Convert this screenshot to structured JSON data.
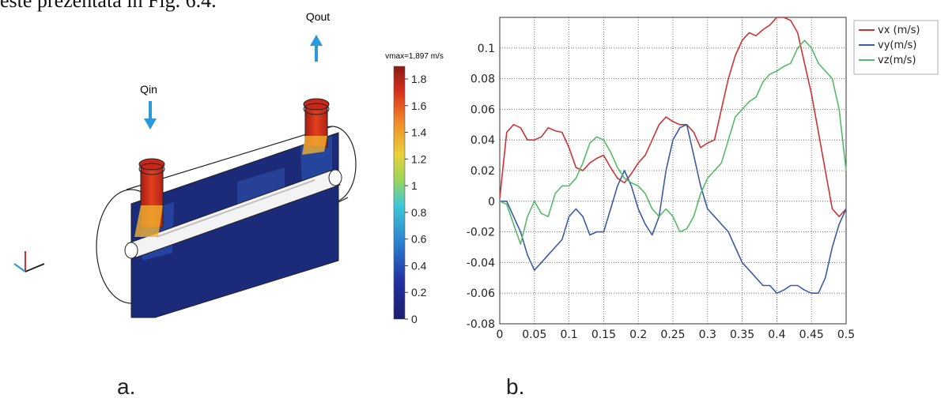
{
  "top_text": "este prezentată în Fig. 6.4.",
  "panel_a": {
    "label": "a.",
    "qin_label": "Qin",
    "qout_label": "Qout",
    "vmax_label": "vmax=1,897 m/s",
    "colorbar_ticks": [
      "1.8",
      "1.6",
      "1.4",
      "1.2",
      "1",
      "0.8",
      "0.6",
      "0.4",
      "0.2",
      "0"
    ],
    "colors": {
      "arrow": "#2a9ad8",
      "body": "#1c2a7a",
      "hot": "#d8301c"
    }
  },
  "panel_b": {
    "label": "b."
  },
  "chart_data": {
    "type": "line",
    "xlim": [
      0,
      0.5
    ],
    "ylim": [
      -0.08,
      0.12
    ],
    "x_ticks": [
      "0",
      "0.05",
      "0.1",
      "0.15",
      "0.2",
      "0.25",
      "0.3",
      "0.35",
      "0.4",
      "0.45",
      "0.5"
    ],
    "y_ticks": [
      "0.1",
      "0.08",
      "0.06",
      "0.04",
      "0.02",
      "0",
      "-0.02",
      "-0.04",
      "-0.06",
      "-0.08"
    ],
    "grid": true,
    "legend": "top-right outside",
    "series": [
      {
        "name": "vx (m/s)",
        "color": "#cc3333",
        "x": [
          0,
          0.01,
          0.02,
          0.03,
          0.04,
          0.05,
          0.06,
          0.07,
          0.08,
          0.09,
          0.1,
          0.11,
          0.12,
          0.13,
          0.14,
          0.15,
          0.16,
          0.17,
          0.18,
          0.19,
          0.2,
          0.21,
          0.22,
          0.23,
          0.24,
          0.25,
          0.26,
          0.27,
          0.28,
          0.29,
          0.3,
          0.31,
          0.32,
          0.33,
          0.34,
          0.35,
          0.36,
          0.37,
          0.38,
          0.39,
          0.4,
          0.41,
          0.42,
          0.43,
          0.44,
          0.45,
          0.46,
          0.47,
          0.48,
          0.49,
          0.5
        ],
        "y": [
          0.002,
          0.045,
          0.05,
          0.048,
          0.04,
          0.04,
          0.042,
          0.048,
          0.046,
          0.045,
          0.035,
          0.022,
          0.02,
          0.025,
          0.028,
          0.03,
          0.022,
          0.015,
          0.012,
          0.018,
          0.025,
          0.03,
          0.04,
          0.05,
          0.055,
          0.052,
          0.05,
          0.05,
          0.045,
          0.035,
          0.038,
          0.04,
          0.06,
          0.08,
          0.095,
          0.105,
          0.11,
          0.108,
          0.112,
          0.115,
          0.12,
          0.12,
          0.118,
          0.11,
          0.09,
          0.07,
          0.045,
          0.02,
          -0.005,
          -0.01,
          -0.005
        ]
      },
      {
        "name": "vy(m/s)",
        "color": "#3a5aaa",
        "x": [
          0,
          0.01,
          0.02,
          0.03,
          0.04,
          0.05,
          0.06,
          0.07,
          0.08,
          0.09,
          0.1,
          0.11,
          0.12,
          0.13,
          0.14,
          0.15,
          0.16,
          0.17,
          0.18,
          0.19,
          0.2,
          0.21,
          0.22,
          0.23,
          0.24,
          0.25,
          0.26,
          0.27,
          0.28,
          0.29,
          0.3,
          0.31,
          0.32,
          0.33,
          0.34,
          0.35,
          0.36,
          0.37,
          0.38,
          0.39,
          0.4,
          0.41,
          0.42,
          0.43,
          0.44,
          0.45,
          0.46,
          0.47,
          0.48,
          0.49,
          0.5
        ],
        "y": [
          0,
          0,
          -0.01,
          -0.02,
          -0.035,
          -0.045,
          -0.04,
          -0.035,
          -0.03,
          -0.025,
          -0.01,
          -0.005,
          -0.01,
          -0.022,
          -0.02,
          -0.02,
          -0.005,
          0.01,
          0.02,
          0.01,
          -0.005,
          -0.015,
          -0.022,
          -0.01,
          0.02,
          0.04,
          0.048,
          0.05,
          0.03,
          0.01,
          -0.005,
          -0.01,
          -0.015,
          -0.02,
          -0.03,
          -0.04,
          -0.045,
          -0.05,
          -0.055,
          -0.055,
          -0.06,
          -0.058,
          -0.055,
          -0.055,
          -0.058,
          -0.06,
          -0.06,
          -0.05,
          -0.03,
          -0.015,
          -0.005
        ]
      },
      {
        "name": "vz(m/s)",
        "color": "#55bb66",
        "x": [
          0,
          0.01,
          0.02,
          0.03,
          0.04,
          0.05,
          0.06,
          0.07,
          0.08,
          0.09,
          0.1,
          0.11,
          0.12,
          0.13,
          0.14,
          0.15,
          0.16,
          0.17,
          0.18,
          0.19,
          0.2,
          0.21,
          0.22,
          0.23,
          0.24,
          0.25,
          0.26,
          0.27,
          0.28,
          0.29,
          0.3,
          0.31,
          0.32,
          0.33,
          0.34,
          0.35,
          0.36,
          0.37,
          0.38,
          0.39,
          0.4,
          0.41,
          0.42,
          0.43,
          0.44,
          0.45,
          0.46,
          0.47,
          0.48,
          0.49,
          0.5
        ],
        "y": [
          0,
          -0.002,
          -0.015,
          -0.028,
          -0.01,
          0,
          -0.008,
          -0.01,
          0.005,
          0.01,
          0.01,
          0.015,
          0.025,
          0.038,
          0.042,
          0.04,
          0.032,
          0.022,
          0.015,
          0.012,
          0.01,
          0.005,
          -0.005,
          -0.01,
          -0.005,
          -0.01,
          -0.02,
          -0.018,
          -0.01,
          0.005,
          0.015,
          0.02,
          0.025,
          0.04,
          0.055,
          0.06,
          0.065,
          0.068,
          0.078,
          0.083,
          0.085,
          0.088,
          0.09,
          0.1,
          0.105,
          0.1,
          0.09,
          0.085,
          0.08,
          0.06,
          0.02
        ]
      }
    ]
  }
}
